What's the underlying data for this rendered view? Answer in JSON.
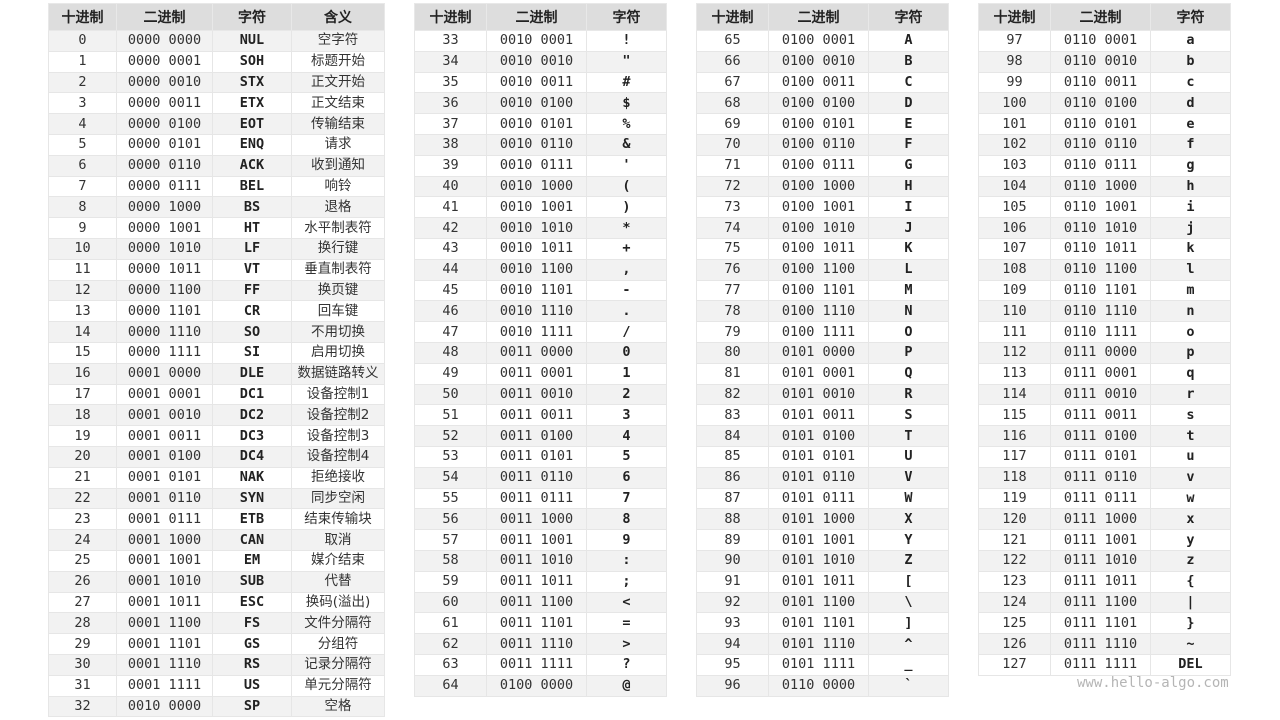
{
  "headers": {
    "dec": "十进制",
    "bin": "二进制",
    "char": "字符",
    "meaning": "含义"
  },
  "watermark": "www.hello-algo.com",
  "tables": [
    {
      "rows": [
        [
          "0",
          "0000 0000",
          "NUL",
          "空字符"
        ],
        [
          "1",
          "0000 0001",
          "SOH",
          "标题开始"
        ],
        [
          "2",
          "0000 0010",
          "STX",
          "正文开始"
        ],
        [
          "3",
          "0000 0011",
          "ETX",
          "正文结束"
        ],
        [
          "4",
          "0000 0100",
          "EOT",
          "传输结束"
        ],
        [
          "5",
          "0000 0101",
          "ENQ",
          "请求"
        ],
        [
          "6",
          "0000 0110",
          "ACK",
          "收到通知"
        ],
        [
          "7",
          "0000 0111",
          "BEL",
          "响铃"
        ],
        [
          "8",
          "0000 1000",
          "BS",
          "退格"
        ],
        [
          "9",
          "0000 1001",
          "HT",
          "水平制表符"
        ],
        [
          "10",
          "0000 1010",
          "LF",
          "换行键"
        ],
        [
          "11",
          "0000 1011",
          "VT",
          "垂直制表符"
        ],
        [
          "12",
          "0000 1100",
          "FF",
          "换页键"
        ],
        [
          "13",
          "0000 1101",
          "CR",
          "回车键"
        ],
        [
          "14",
          "0000 1110",
          "SO",
          "不用切换"
        ],
        [
          "15",
          "0000 1111",
          "SI",
          "启用切换"
        ],
        [
          "16",
          "0001 0000",
          "DLE",
          "数据链路转义"
        ],
        [
          "17",
          "0001 0001",
          "DC1",
          "设备控制1"
        ],
        [
          "18",
          "0001 0010",
          "DC2",
          "设备控制2"
        ],
        [
          "19",
          "0001 0011",
          "DC3",
          "设备控制3"
        ],
        [
          "20",
          "0001 0100",
          "DC4",
          "设备控制4"
        ],
        [
          "21",
          "0001 0101",
          "NAK",
          "拒绝接收"
        ],
        [
          "22",
          "0001 0110",
          "SYN",
          "同步空闲"
        ],
        [
          "23",
          "0001 0111",
          "ETB",
          "结束传输块"
        ],
        [
          "24",
          "0001 1000",
          "CAN",
          "取消"
        ],
        [
          "25",
          "0001 1001",
          "EM",
          "媒介结束"
        ],
        [
          "26",
          "0001 1010",
          "SUB",
          "代替"
        ],
        [
          "27",
          "0001 1011",
          "ESC",
          "换码(溢出)"
        ],
        [
          "28",
          "0001 1100",
          "FS",
          "文件分隔符"
        ],
        [
          "29",
          "0001 1101",
          "GS",
          "分组符"
        ],
        [
          "30",
          "0001 1110",
          "RS",
          "记录分隔符"
        ],
        [
          "31",
          "0001 1111",
          "US",
          "单元分隔符"
        ],
        [
          "32",
          "0010 0000",
          "SP",
          "空格"
        ]
      ]
    },
    {
      "rows": [
        [
          "33",
          "0010 0001",
          "!"
        ],
        [
          "34",
          "0010 0010",
          "\""
        ],
        [
          "35",
          "0010 0011",
          "#"
        ],
        [
          "36",
          "0010 0100",
          "$"
        ],
        [
          "37",
          "0010 0101",
          "%"
        ],
        [
          "38",
          "0010 0110",
          "&"
        ],
        [
          "39",
          "0010 0111",
          "'"
        ],
        [
          "40",
          "0010 1000",
          "("
        ],
        [
          "41",
          "0010 1001",
          ")"
        ],
        [
          "42",
          "0010 1010",
          "*"
        ],
        [
          "43",
          "0010 1011",
          "+"
        ],
        [
          "44",
          "0010 1100",
          ","
        ],
        [
          "45",
          "0010 1101",
          "-"
        ],
        [
          "46",
          "0010 1110",
          "."
        ],
        [
          "47",
          "0010 1111",
          "/"
        ],
        [
          "48",
          "0011 0000",
          "0"
        ],
        [
          "49",
          "0011 0001",
          "1"
        ],
        [
          "50",
          "0011 0010",
          "2"
        ],
        [
          "51",
          "0011 0011",
          "3"
        ],
        [
          "52",
          "0011 0100",
          "4"
        ],
        [
          "53",
          "0011 0101",
          "5"
        ],
        [
          "54",
          "0011 0110",
          "6"
        ],
        [
          "55",
          "0011 0111",
          "7"
        ],
        [
          "56",
          "0011 1000",
          "8"
        ],
        [
          "57",
          "0011 1001",
          "9"
        ],
        [
          "58",
          "0011 1010",
          ":"
        ],
        [
          "59",
          "0011 1011",
          ";"
        ],
        [
          "60",
          "0011 1100",
          "<"
        ],
        [
          "61",
          "0011 1101",
          "="
        ],
        [
          "62",
          "0011 1110",
          ">"
        ],
        [
          "63",
          "0011 1111",
          "?"
        ],
        [
          "64",
          "0100 0000",
          "@"
        ]
      ]
    },
    {
      "rows": [
        [
          "65",
          "0100 0001",
          "A"
        ],
        [
          "66",
          "0100 0010",
          "B"
        ],
        [
          "67",
          "0100 0011",
          "C"
        ],
        [
          "68",
          "0100 0100",
          "D"
        ],
        [
          "69",
          "0100 0101",
          "E"
        ],
        [
          "70",
          "0100 0110",
          "F"
        ],
        [
          "71",
          "0100 0111",
          "G"
        ],
        [
          "72",
          "0100 1000",
          "H"
        ],
        [
          "73",
          "0100 1001",
          "I"
        ],
        [
          "74",
          "0100 1010",
          "J"
        ],
        [
          "75",
          "0100 1011",
          "K"
        ],
        [
          "76",
          "0100 1100",
          "L"
        ],
        [
          "77",
          "0100 1101",
          "M"
        ],
        [
          "78",
          "0100 1110",
          "N"
        ],
        [
          "79",
          "0100 1111",
          "O"
        ],
        [
          "80",
          "0101 0000",
          "P"
        ],
        [
          "81",
          "0101 0001",
          "Q"
        ],
        [
          "82",
          "0101 0010",
          "R"
        ],
        [
          "83",
          "0101 0011",
          "S"
        ],
        [
          "84",
          "0101 0100",
          "T"
        ],
        [
          "85",
          "0101 0101",
          "U"
        ],
        [
          "86",
          "0101 0110",
          "V"
        ],
        [
          "87",
          "0101 0111",
          "W"
        ],
        [
          "88",
          "0101 1000",
          "X"
        ],
        [
          "89",
          "0101 1001",
          "Y"
        ],
        [
          "90",
          "0101 1010",
          "Z"
        ],
        [
          "91",
          "0101 1011",
          "["
        ],
        [
          "92",
          "0101 1100",
          "\\"
        ],
        [
          "93",
          "0101 1101",
          "]"
        ],
        [
          "94",
          "0101 1110",
          "^"
        ],
        [
          "95",
          "0101 1111",
          "_"
        ],
        [
          "96",
          "0110 0000",
          "`"
        ]
      ]
    },
    {
      "rows": [
        [
          "97",
          "0110 0001",
          "a"
        ],
        [
          "98",
          "0110 0010",
          "b"
        ],
        [
          "99",
          "0110 0011",
          "c"
        ],
        [
          "100",
          "0110 0100",
          "d"
        ],
        [
          "101",
          "0110 0101",
          "e"
        ],
        [
          "102",
          "0110 0110",
          "f"
        ],
        [
          "103",
          "0110 0111",
          "g"
        ],
        [
          "104",
          "0110 1000",
          "h"
        ],
        [
          "105",
          "0110 1001",
          "i"
        ],
        [
          "106",
          "0110 1010",
          "j"
        ],
        [
          "107",
          "0110 1011",
          "k"
        ],
        [
          "108",
          "0110 1100",
          "l"
        ],
        [
          "109",
          "0110 1101",
          "m"
        ],
        [
          "110",
          "0110 1110",
          "n"
        ],
        [
          "111",
          "0110 1111",
          "o"
        ],
        [
          "112",
          "0111 0000",
          "p"
        ],
        [
          "113",
          "0111 0001",
          "q"
        ],
        [
          "114",
          "0111 0010",
          "r"
        ],
        [
          "115",
          "0111 0011",
          "s"
        ],
        [
          "116",
          "0111 0100",
          "t"
        ],
        [
          "117",
          "0111 0101",
          "u"
        ],
        [
          "118",
          "0111 0110",
          "v"
        ],
        [
          "119",
          "0111 0111",
          "w"
        ],
        [
          "120",
          "0111 1000",
          "x"
        ],
        [
          "121",
          "0111 1001",
          "y"
        ],
        [
          "122",
          "0111 1010",
          "z"
        ],
        [
          "123",
          "0111 1011",
          "{"
        ],
        [
          "124",
          "0111 1100",
          "|"
        ],
        [
          "125",
          "0111 1101",
          "}"
        ],
        [
          "126",
          "0111 1110",
          "~"
        ],
        [
          "127",
          "0111 1111",
          "DEL"
        ]
      ]
    }
  ]
}
